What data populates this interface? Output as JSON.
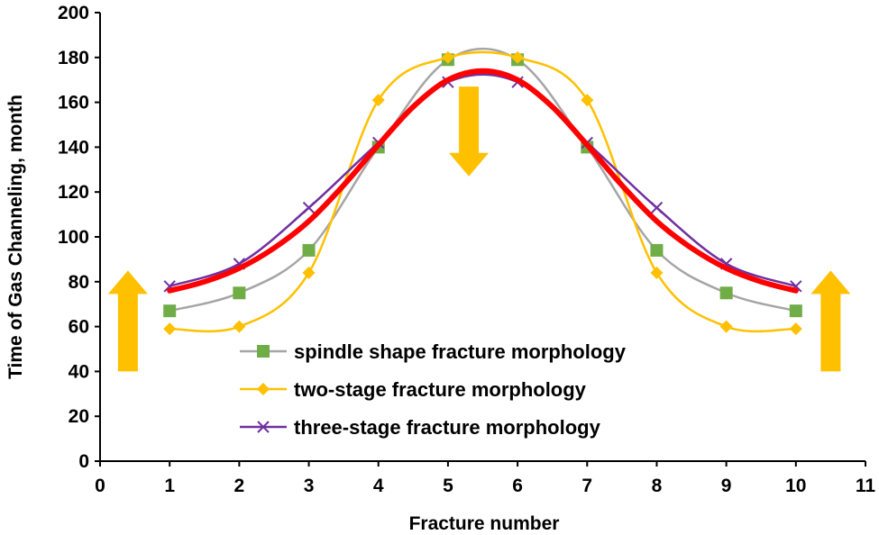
{
  "chart_data": {
    "type": "line",
    "title": "",
    "xlabel": "Fracture number",
    "ylabel": "Time of Gas Channeling, month",
    "xlim": [
      0,
      11
    ],
    "ylim": [
      0,
      200
    ],
    "xticks": [
      0,
      1,
      2,
      3,
      4,
      5,
      6,
      7,
      8,
      9,
      10,
      11
    ],
    "yticks": [
      0,
      20,
      40,
      60,
      80,
      100,
      120,
      140,
      160,
      180,
      200
    ],
    "grid": false,
    "legend_position": "bottom-center",
    "x": [
      1,
      2,
      3,
      4,
      5,
      6,
      7,
      8,
      9,
      10
    ],
    "series": [
      {
        "name": "spindle shape fracture morphology",
        "color": "#a5a5a5",
        "marker_color": "#70ad47",
        "marker": "square",
        "values": [
          67,
          75,
          94,
          140,
          179,
          179,
          140,
          94,
          75,
          67
        ]
      },
      {
        "name": "two-stage fracture morphology",
        "color": "#ffc000",
        "marker_color": "#ffc000",
        "marker": "diamond",
        "values": [
          59,
          60,
          84,
          161,
          180,
          180,
          161,
          84,
          60,
          59
        ]
      },
      {
        "name": "three-stage fracture morphology",
        "color": "#7030a0",
        "marker_color": "#7030a0",
        "marker": "x",
        "values": [
          78,
          88,
          113,
          142,
          169,
          169,
          142,
          113,
          88,
          78
        ]
      }
    ],
    "fit_curve": {
      "color": "#ff0000",
      "x": [
        1,
        1.5,
        2,
        2.5,
        3,
        3.5,
        4,
        4.5,
        5,
        5.5,
        6,
        6.5,
        7,
        7.5,
        8,
        8.5,
        9,
        9.5,
        10
      ],
      "values": [
        76,
        80,
        86,
        95,
        107,
        123,
        141,
        158,
        170,
        174,
        170,
        158,
        141,
        123,
        107,
        95,
        86,
        80,
        76
      ]
    },
    "annotations": [
      {
        "type": "arrow-up",
        "color": "#ffc000",
        "x": 0.4,
        "y_from": 40,
        "y_to": 85
      },
      {
        "type": "arrow-down",
        "color": "#ffc000",
        "x": 5.3,
        "y_from": 167,
        "y_to": 127
      },
      {
        "type": "arrow-up",
        "color": "#ffc000",
        "x": 10.5,
        "y_from": 40,
        "y_to": 85
      }
    ]
  }
}
